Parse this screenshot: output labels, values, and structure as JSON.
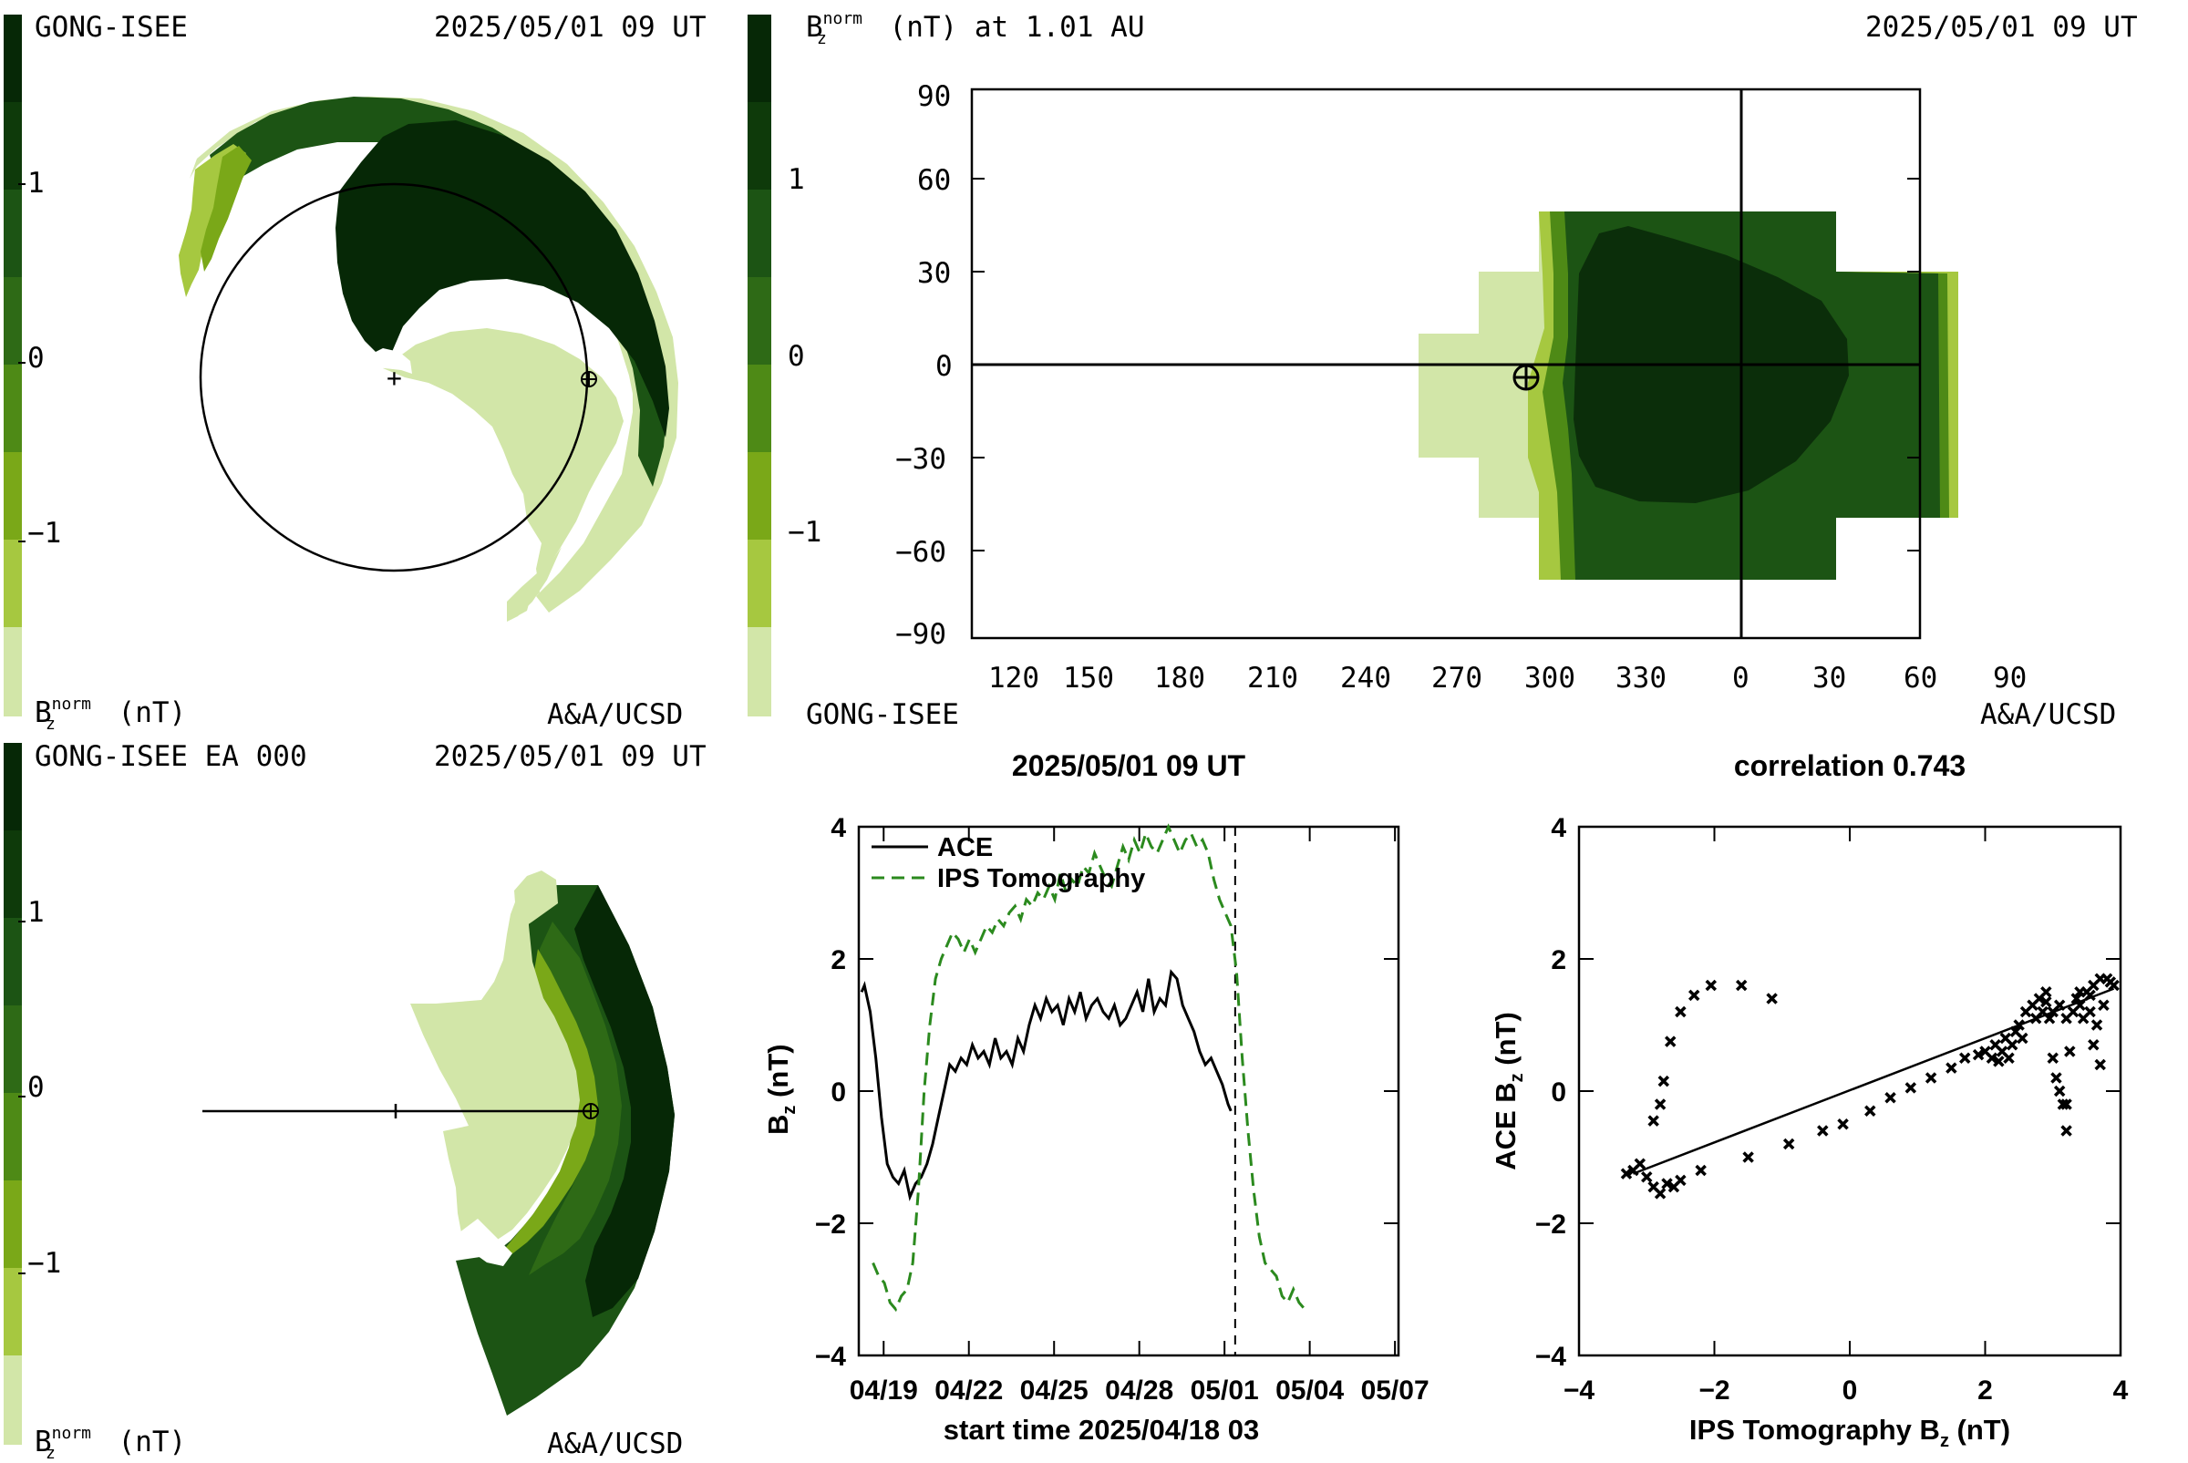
{
  "colors": {
    "ramp": [
      "#d2e6a8",
      "#a6c840",
      "#7aa818",
      "#4e8a16",
      "#2e6a16",
      "#1c5414",
      "#0e3a0a",
      "#062806"
    ],
    "dark": "#0b2e0a",
    "tomography_series": "#2b8a1e",
    "ace_series": "#000000"
  },
  "panel_tl": {
    "left_title": "GONG-ISEE",
    "right_title": "2025/05/01 09 UT",
    "colorbar_ticks": [
      "1",
      "0",
      "−1"
    ],
    "unit_label": "(nT)",
    "unit_symbol": "B",
    "unit_sub": "z",
    "unit_sup": "norm",
    "credit": "A&A/UCSD"
  },
  "panel_tr": {
    "title_symbol": "B",
    "title_sub": "z",
    "title_sup": "norm",
    "title_rest": "(nT) at 1.01 AU",
    "right_title": "2025/05/01 09 UT",
    "colorbar_ticks": [
      "1",
      "0",
      "−1"
    ],
    "bottom_left": "GONG-ISEE",
    "credit": "A&A/UCSD",
    "x_ticks": [
      "120",
      "150",
      "180",
      "210",
      "240",
      "270",
      "300",
      "330",
      "0",
      "30",
      "60",
      "90"
    ],
    "y_ticks": [
      "90",
      "60",
      "30",
      "0",
      "−30",
      "−60",
      "−90"
    ]
  },
  "panel_bl": {
    "left_title": "GONG-ISEE EA 000",
    "right_title": "2025/05/01 09 UT",
    "colorbar_ticks": [
      "1",
      "0",
      "−1"
    ],
    "unit_label": "(nT)",
    "unit_symbol": "B",
    "unit_sub": "z",
    "unit_sup": "norm",
    "credit": "A&A/UCSD"
  },
  "chart_data": [
    {
      "type": "line",
      "title": "2025/05/01 09 UT",
      "xlabel": "start time 2025/04/18 03",
      "ylabel_symbol": "B",
      "ylabel_sub": "z",
      "ylabel_unit": "(nT)",
      "x_tick_labels": [
        "04/19",
        "04/22",
        "04/25",
        "04/28",
        "05/01",
        "05/04",
        "05/07"
      ],
      "x_tick_days": [
        0.875,
        3.875,
        6.875,
        9.875,
        12.875,
        15.875,
        18.875
      ],
      "xlim_days": [
        0,
        19
      ],
      "ylim": [
        -4,
        4
      ],
      "y_ticks": [
        4,
        2,
        0,
        -2,
        -4
      ],
      "marker_day": 13.25,
      "legend_placement": "top-left",
      "series": [
        {
          "name": "ACE",
          "style": "solid",
          "points": [
            [
              0.1,
              1.5
            ],
            [
              0.2,
              1.6
            ],
            [
              0.4,
              1.2
            ],
            [
              0.6,
              0.5
            ],
            [
              0.8,
              -0.4
            ],
            [
              1.0,
              -1.1
            ],
            [
              1.2,
              -1.3
            ],
            [
              1.4,
              -1.4
            ],
            [
              1.6,
              -1.2
            ],
            [
              1.8,
              -1.6
            ],
            [
              2.0,
              -1.4
            ],
            [
              2.2,
              -1.3
            ],
            [
              2.4,
              -1.1
            ],
            [
              2.6,
              -0.8
            ],
            [
              2.8,
              -0.4
            ],
            [
              3.0,
              0.0
            ],
            [
              3.2,
              0.4
            ],
            [
              3.4,
              0.3
            ],
            [
              3.6,
              0.5
            ],
            [
              3.8,
              0.4
            ],
            [
              4.0,
              0.7
            ],
            [
              4.2,
              0.5
            ],
            [
              4.4,
              0.6
            ],
            [
              4.6,
              0.4
            ],
            [
              4.8,
              0.8
            ],
            [
              5.0,
              0.5
            ],
            [
              5.2,
              0.6
            ],
            [
              5.4,
              0.4
            ],
            [
              5.6,
              0.8
            ],
            [
              5.8,
              0.6
            ],
            [
              6.0,
              1.0
            ],
            [
              6.2,
              1.3
            ],
            [
              6.4,
              1.1
            ],
            [
              6.6,
              1.4
            ],
            [
              6.8,
              1.2
            ],
            [
              7.0,
              1.3
            ],
            [
              7.2,
              1.0
            ],
            [
              7.4,
              1.4
            ],
            [
              7.6,
              1.2
            ],
            [
              7.8,
              1.5
            ],
            [
              8.0,
              1.1
            ],
            [
              8.2,
              1.3
            ],
            [
              8.4,
              1.4
            ],
            [
              8.6,
              1.2
            ],
            [
              8.8,
              1.1
            ],
            [
              9.0,
              1.3
            ],
            [
              9.2,
              1.0
            ],
            [
              9.4,
              1.1
            ],
            [
              9.6,
              1.3
            ],
            [
              9.8,
              1.5
            ],
            [
              10.0,
              1.2
            ],
            [
              10.2,
              1.7
            ],
            [
              10.4,
              1.2
            ],
            [
              10.6,
              1.4
            ],
            [
              10.8,
              1.3
            ],
            [
              11.0,
              1.8
            ],
            [
              11.2,
              1.7
            ],
            [
              11.4,
              1.3
            ],
            [
              11.6,
              1.1
            ],
            [
              11.8,
              0.9
            ],
            [
              12.0,
              0.6
            ],
            [
              12.2,
              0.4
            ],
            [
              12.4,
              0.5
            ],
            [
              12.6,
              0.3
            ],
            [
              12.8,
              0.1
            ],
            [
              13.0,
              -0.2
            ],
            [
              13.1,
              -0.3
            ]
          ]
        },
        {
          "name": "IPS Tomography",
          "style": "dashed",
          "points": [
            [
              0.5,
              -2.6
            ],
            [
              0.7,
              -2.8
            ],
            [
              0.9,
              -2.9
            ],
            [
              1.1,
              -3.2
            ],
            [
              1.3,
              -3.3
            ],
            [
              1.5,
              -3.1
            ],
            [
              1.7,
              -3.0
            ],
            [
              1.9,
              -2.6
            ],
            [
              2.1,
              -1.5
            ],
            [
              2.3,
              0.0
            ],
            [
              2.5,
              1.0
            ],
            [
              2.7,
              1.7
            ],
            [
              2.9,
              2.0
            ],
            [
              3.1,
              2.2
            ],
            [
              3.3,
              2.4
            ],
            [
              3.5,
              2.3
            ],
            [
              3.7,
              2.1
            ],
            [
              3.9,
              2.3
            ],
            [
              4.1,
              2.1
            ],
            [
              4.3,
              2.3
            ],
            [
              4.5,
              2.5
            ],
            [
              4.7,
              2.4
            ],
            [
              4.9,
              2.6
            ],
            [
              5.1,
              2.5
            ],
            [
              5.3,
              2.7
            ],
            [
              5.5,
              2.8
            ],
            [
              5.7,
              2.6
            ],
            [
              5.9,
              2.9
            ],
            [
              6.1,
              2.8
            ],
            [
              6.3,
              3.0
            ],
            [
              6.5,
              2.9
            ],
            [
              6.7,
              3.1
            ],
            [
              6.9,
              2.9
            ],
            [
              7.1,
              3.3
            ],
            [
              7.3,
              3.0
            ],
            [
              7.5,
              3.2
            ],
            [
              7.7,
              3.1
            ],
            [
              7.9,
              3.4
            ],
            [
              8.1,
              3.3
            ],
            [
              8.3,
              3.6
            ],
            [
              8.5,
              3.4
            ],
            [
              8.7,
              3.2
            ],
            [
              8.9,
              3.1
            ],
            [
              9.1,
              3.4
            ],
            [
              9.3,
              3.7
            ],
            [
              9.5,
              3.5
            ],
            [
              9.7,
              3.8
            ],
            [
              9.9,
              3.6
            ],
            [
              10.1,
              3.9
            ],
            [
              10.3,
              3.7
            ],
            [
              10.5,
              3.6
            ],
            [
              10.7,
              3.8
            ],
            [
              10.9,
              4.0
            ],
            [
              11.1,
              3.8
            ],
            [
              11.3,
              3.6
            ],
            [
              11.5,
              3.8
            ],
            [
              11.7,
              3.9
            ],
            [
              11.9,
              3.7
            ],
            [
              12.1,
              3.8
            ],
            [
              12.3,
              3.6
            ],
            [
              12.5,
              3.2
            ],
            [
              12.7,
              2.9
            ],
            [
              12.9,
              2.7
            ],
            [
              13.1,
              2.5
            ],
            [
              13.3,
              1.8
            ],
            [
              13.5,
              0.5
            ],
            [
              13.7,
              -0.6
            ],
            [
              13.9,
              -1.5
            ],
            [
              14.1,
              -2.2
            ],
            [
              14.3,
              -2.6
            ],
            [
              14.5,
              -2.7
            ],
            [
              14.7,
              -2.8
            ],
            [
              14.9,
              -3.1
            ],
            [
              15.1,
              -3.2
            ],
            [
              15.3,
              -3.0
            ],
            [
              15.5,
              -3.2
            ],
            [
              15.7,
              -3.3
            ]
          ]
        }
      ]
    },
    {
      "type": "scatter",
      "title": "correlation 0.743",
      "xlabel": "IPS Tomography",
      "xlabel_symbol": "B",
      "xlabel_sub": "z",
      "xlabel_unit": "(nT)",
      "ylabel": "ACE",
      "ylabel_symbol": "B",
      "ylabel_sub": "z",
      "ylabel_unit": "(nT)",
      "xlim": [
        -4,
        4
      ],
      "ylim": [
        -4,
        4
      ],
      "x_ticks": [
        -4,
        -2,
        0,
        2,
        4
      ],
      "y_ticks": [
        4,
        2,
        0,
        -2,
        -4
      ],
      "fit_line": [
        [
          -3.2,
          -1.25
        ],
        [
          3.9,
          1.55
        ]
      ],
      "points": [
        [
          -3.3,
          -1.25
        ],
        [
          -3.2,
          -1.2
        ],
        [
          -3.1,
          -1.1
        ],
        [
          -3.0,
          -1.3
        ],
        [
          -2.9,
          -1.45
        ],
        [
          -2.8,
          -1.55
        ],
        [
          -2.7,
          -1.4
        ],
        [
          -2.6,
          -1.45
        ],
        [
          -2.5,
          -1.35
        ],
        [
          -2.2,
          -1.2
        ],
        [
          -2.9,
          -0.45
        ],
        [
          -2.8,
          -0.2
        ],
        [
          -2.75,
          0.15
        ],
        [
          -2.65,
          0.75
        ],
        [
          -2.5,
          1.2
        ],
        [
          -2.3,
          1.45
        ],
        [
          -2.05,
          1.6
        ],
        [
          -1.6,
          1.6
        ],
        [
          -1.15,
          1.4
        ],
        [
          -1.5,
          -1.0
        ],
        [
          -0.9,
          -0.8
        ],
        [
          -0.4,
          -0.6
        ],
        [
          -0.1,
          -0.5
        ],
        [
          0.3,
          -0.3
        ],
        [
          0.6,
          -0.1
        ],
        [
          0.9,
          0.05
        ],
        [
          1.2,
          0.2
        ],
        [
          1.5,
          0.35
        ],
        [
          1.7,
          0.5
        ],
        [
          1.9,
          0.55
        ],
        [
          2.0,
          0.6
        ],
        [
          2.1,
          0.5
        ],
        [
          2.15,
          0.7
        ],
        [
          2.2,
          0.45
        ],
        [
          2.25,
          0.6
        ],
        [
          2.3,
          0.8
        ],
        [
          2.35,
          0.5
        ],
        [
          2.4,
          0.7
        ],
        [
          2.45,
          0.9
        ],
        [
          2.5,
          1.0
        ],
        [
          2.55,
          0.8
        ],
        [
          2.6,
          1.2
        ],
        [
          2.7,
          1.3
        ],
        [
          2.75,
          1.1
        ],
        [
          2.8,
          1.4
        ],
        [
          2.85,
          1.2
        ],
        [
          2.9,
          1.35
        ],
        [
          2.95,
          1.1
        ],
        [
          3.0,
          0.5
        ],
        [
          3.0,
          1.2
        ],
        [
          3.05,
          0.2
        ],
        [
          3.1,
          1.3
        ],
        [
          3.1,
          0.0
        ],
        [
          3.15,
          -0.2
        ],
        [
          3.2,
          1.1
        ],
        [
          3.2,
          -0.2
        ],
        [
          3.25,
          0.6
        ],
        [
          3.3,
          1.2
        ],
        [
          3.35,
          1.4
        ],
        [
          3.4,
          1.3
        ],
        [
          3.45,
          1.1
        ],
        [
          3.5,
          1.5
        ],
        [
          3.55,
          1.2
        ],
        [
          3.6,
          1.6
        ],
        [
          3.65,
          1.0
        ],
        [
          3.7,
          1.7
        ],
        [
          3.75,
          1.3
        ],
        [
          3.8,
          1.7
        ],
        [
          3.85,
          1.65
        ],
        [
          3.9,
          1.6
        ],
        [
          3.2,
          -0.6
        ],
        [
          3.6,
          0.7
        ],
        [
          3.7,
          0.4
        ],
        [
          3.4,
          1.5
        ],
        [
          2.9,
          1.5
        ],
        [
          3.55,
          1.45
        ]
      ]
    }
  ]
}
